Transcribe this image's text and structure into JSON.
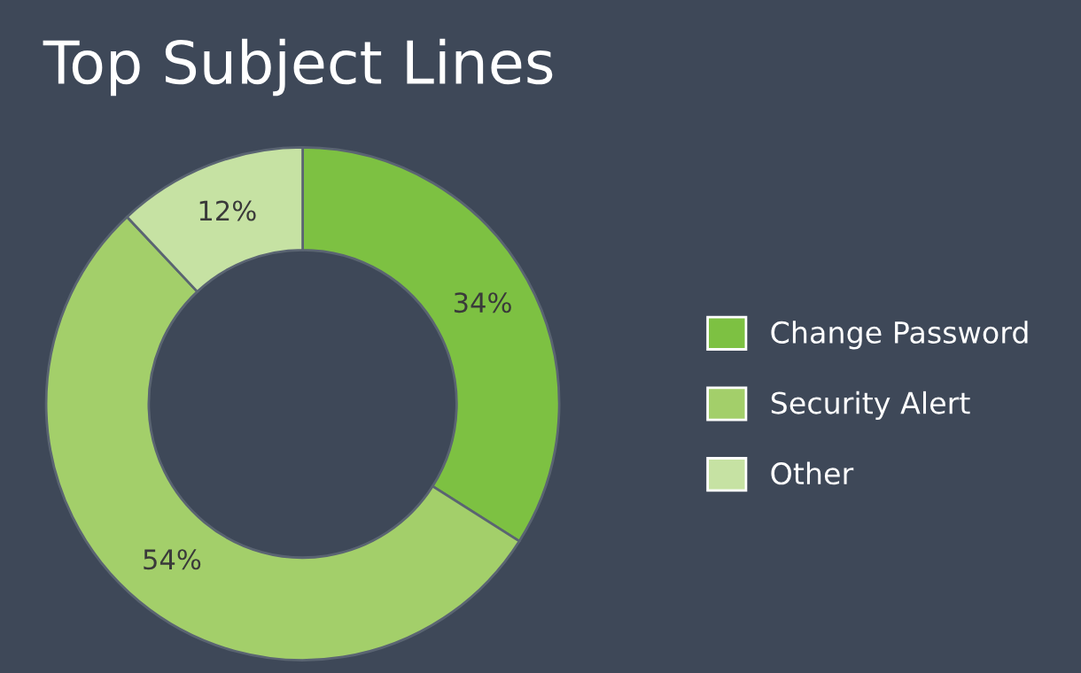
{
  "chart_data": {
    "type": "donut",
    "title": "Top Subject Lines",
    "categories": [
      "Change Password",
      "Security Alert",
      "Other"
    ],
    "values": [
      34,
      54,
      12
    ],
    "value_labels": [
      "34%",
      "54%",
      "12%"
    ],
    "colors": [
      "#7dc142",
      "#a3cf6a",
      "#c6e2a3"
    ],
    "legend": "right"
  }
}
